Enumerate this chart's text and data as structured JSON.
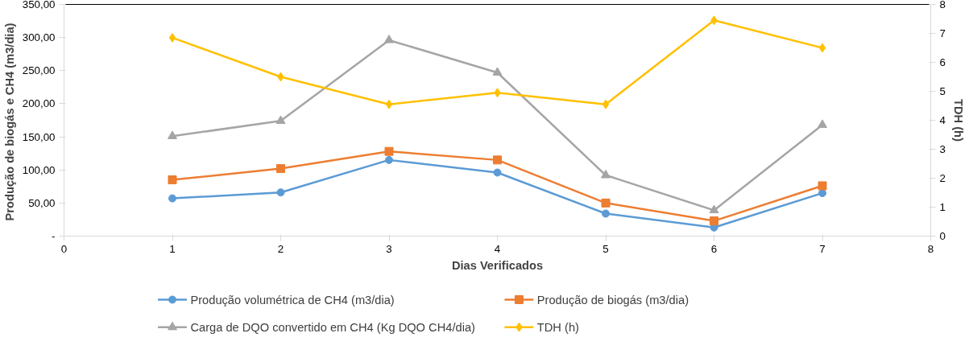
{
  "chart_data": {
    "type": "line",
    "xlabel": "Dias Verificados",
    "ylabel": "Produção de  biogás e CH4 (m3/dia)",
    "y2label": "TDH (h)",
    "x": [
      1,
      2,
      3,
      4,
      5,
      6,
      7
    ],
    "xlim": [
      0,
      8
    ],
    "xticks": [
      0,
      1,
      2,
      3,
      4,
      5,
      6,
      7,
      8
    ],
    "ylim": [
      0,
      350
    ],
    "yticks": [
      {
        "value": 0,
        "label": "-"
      },
      {
        "value": 50,
        "label": "50,00"
      },
      {
        "value": 100,
        "label": "100,00"
      },
      {
        "value": 150,
        "label": "150,00"
      },
      {
        "value": 200,
        "label": "200,00"
      },
      {
        "value": 250,
        "label": "250,00"
      },
      {
        "value": 300,
        "label": "300,00"
      },
      {
        "value": 350,
        "label": "350,00"
      }
    ],
    "y2lim": [
      0,
      8
    ],
    "y2ticks": [
      0,
      1,
      2,
      3,
      4,
      5,
      6,
      7,
      8
    ],
    "grid": false,
    "legend": "bottom",
    "line_style": "solid",
    "series": [
      {
        "name": "Produção volumétrica de CH4 (m3/dia)",
        "color": "#5b9bd5",
        "marker": "circle",
        "values": [
          57,
          66,
          115,
          96,
          34,
          13,
          65
        ]
      },
      {
        "name": "Produção de biogás (m3/dia)",
        "color": "#ed7d31",
        "marker": "square",
        "values": [
          85,
          102,
          128,
          115,
          50,
          23,
          76
        ]
      },
      {
        "name": "Carga de DQO convertido em CH4 (Kg DQO CH4/dia)",
        "color": "#a5a5a5",
        "marker": "triangle",
        "values": [
          151,
          174,
          296,
          247,
          92,
          39,
          168
        ]
      },
      {
        "name": "TDH (h)",
        "color": "#ffc000",
        "marker": "diamond",
        "axis": "y2",
        "values": [
          6.85,
          5.5,
          4.55,
          4.95,
          4.55,
          7.45,
          6.5
        ]
      }
    ]
  }
}
